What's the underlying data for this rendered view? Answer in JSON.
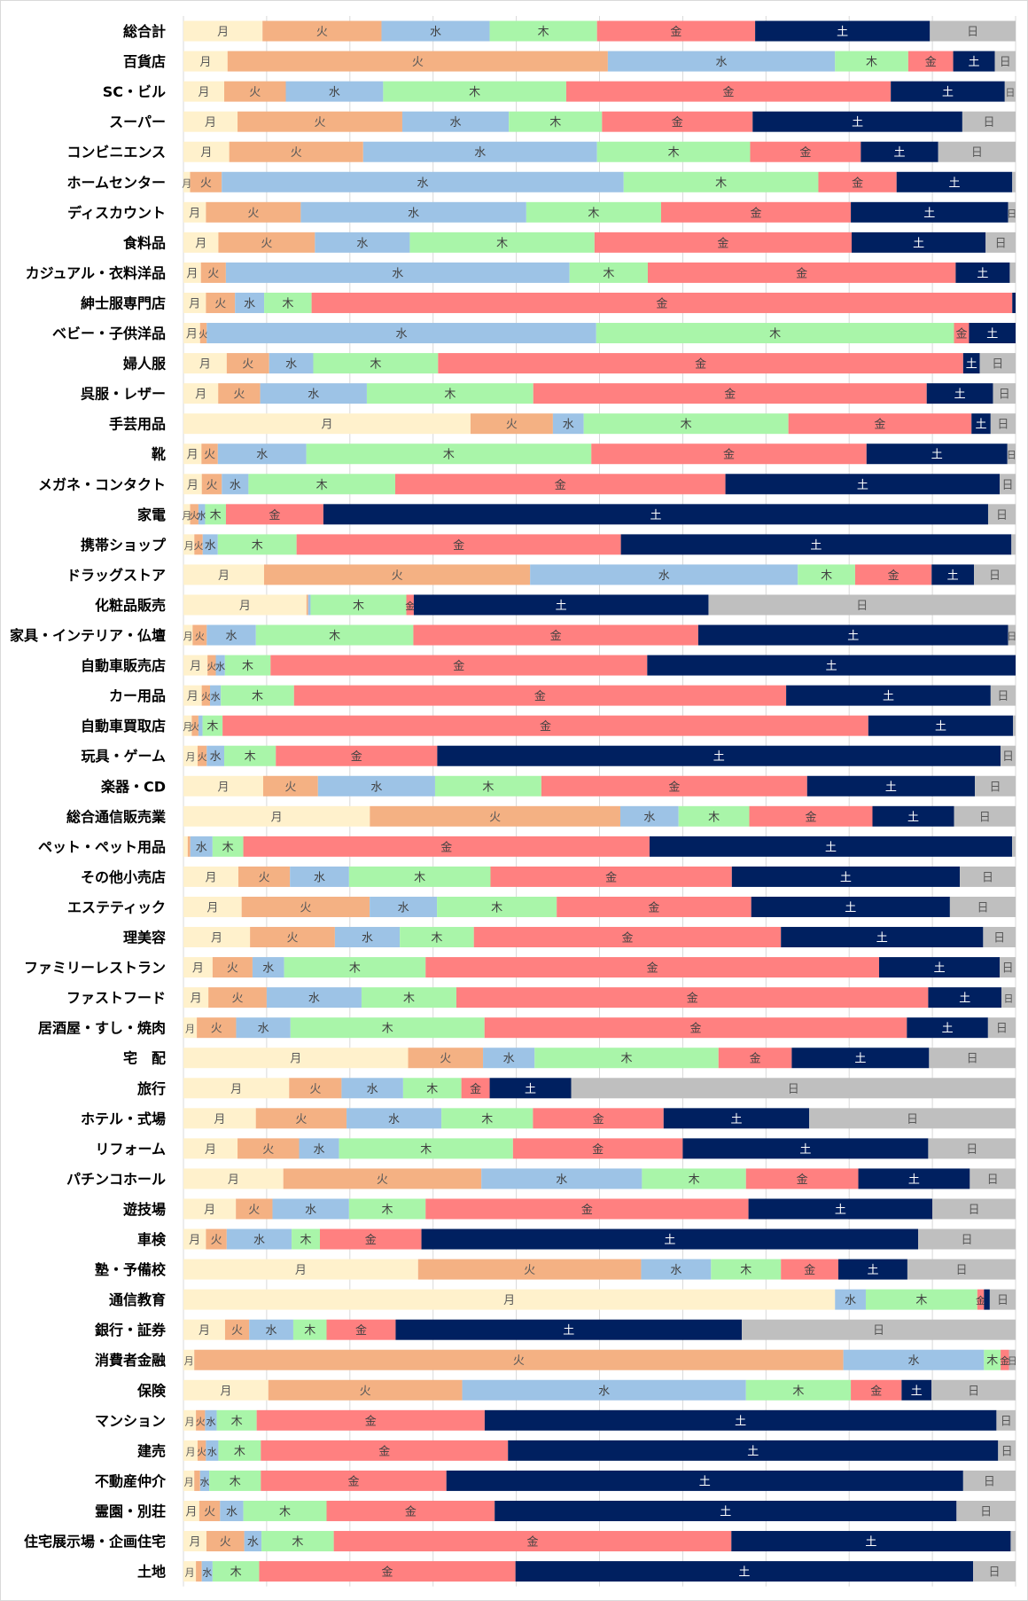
{
  "chart_data": {
    "type": "bar",
    "orientation": "horizontal",
    "stacked": true,
    "percent": true,
    "xlim": [
      0,
      100
    ],
    "grid": true,
    "series_names": [
      "月",
      "火",
      "水",
      "木",
      "金",
      "土",
      "日"
    ],
    "series_colors": [
      "#FFF1CC",
      "#F4B183",
      "#9DC3E6",
      "#A9F5A9",
      "#FF8080",
      "#002060",
      "#BFBFBF"
    ],
    "label_colors": [
      "#595959",
      "#595959",
      "#404040",
      "#404040",
      "#404040",
      "#FFFFFF",
      "#595959"
    ],
    "rows": [
      {
        "label": "総合計",
        "values": [
          9.5,
          14.3,
          13.0,
          12.9,
          19.0,
          21.0,
          10.3
        ]
      },
      {
        "label": "百貨店",
        "values": [
          5.3,
          45.7,
          27.3,
          8.8,
          5.4,
          5.0,
          2.5
        ]
      },
      {
        "label": "SC・ビル",
        "values": [
          4.9,
          7.4,
          11.7,
          22.0,
          39.0,
          13.7,
          1.3
        ]
      },
      {
        "label": "スーパー",
        "values": [
          6.5,
          19.8,
          12.8,
          11.2,
          18.1,
          25.2,
          6.4
        ]
      },
      {
        "label": "コンビニエンス",
        "values": [
          5.5,
          16.1,
          28.1,
          18.4,
          13.3,
          9.3,
          9.3
        ]
      },
      {
        "label": "ホームセンター",
        "values": [
          0.8,
          3.8,
          48.3,
          23.4,
          9.4,
          13.9,
          0.4
        ]
      },
      {
        "label": "ディスカウント",
        "values": [
          2.7,
          11.4,
          27.1,
          16.2,
          22.8,
          18.9,
          0.9
        ]
      },
      {
        "label": "食料品",
        "values": [
          4.2,
          11.6,
          11.4,
          22.2,
          30.9,
          16.1,
          3.6
        ]
      },
      {
        "label": "カジュアル・衣料洋品",
        "values": [
          2.1,
          3.0,
          41.3,
          9.4,
          37.0,
          6.5,
          0.7
        ]
      },
      {
        "label": "紳士服専門店",
        "values": [
          2.7,
          3.5,
          3.5,
          5.7,
          84.2,
          0.4,
          0
        ]
      },
      {
        "label": "ベビー・子供洋品",
        "values": [
          2.0,
          0.8,
          46.8,
          43.0,
          1.8,
          5.6,
          0
        ]
      },
      {
        "label": "婦人服",
        "values": [
          5.2,
          5.1,
          5.3,
          15.0,
          63.1,
          2.0,
          4.3
        ]
      },
      {
        "label": "呉服・レザー",
        "values": [
          4.3,
          5.2,
          13.2,
          20.6,
          48.7,
          8.2,
          2.8
        ]
      },
      {
        "label": "手芸用品",
        "values": [
          34.5,
          9.9,
          3.7,
          24.6,
          22.0,
          2.3,
          3.0
        ]
      },
      {
        "label": "靴",
        "values": [
          2.2,
          2.0,
          10.8,
          34.8,
          33.6,
          17.2,
          1.0
        ]
      },
      {
        "label": "メガネ・コンタクト",
        "values": [
          2.2,
          2.4,
          3.2,
          17.6,
          39.6,
          32.9,
          1.9
        ]
      },
      {
        "label": "家電",
        "values": [
          0.8,
          1.0,
          0.8,
          2.5,
          11.7,
          79.8,
          3.3
        ]
      },
      {
        "label": "携帯ショップ",
        "values": [
          1.3,
          1.0,
          1.8,
          9.4,
          38.7,
          46.6,
          0.5
        ]
      },
      {
        "label": "ドラッグストア",
        "values": [
          9.7,
          32.0,
          32.2,
          6.9,
          9.2,
          5.1,
          5.0
        ]
      },
      {
        "label": "化粧品販売",
        "values": [
          14.9,
          0.2,
          0.3,
          11.6,
          0.9,
          35.7,
          37.2
        ]
      },
      {
        "label": "家具・インテリア・仏壇",
        "values": [
          1.1,
          1.7,
          5.9,
          18.9,
          34.2,
          37.2,
          0.9
        ]
      },
      {
        "label": "自動車販売店",
        "values": [
          2.9,
          1.0,
          1.1,
          5.5,
          45.4,
          44.4,
          0
        ]
      },
      {
        "label": "カー用品",
        "values": [
          2.2,
          1.0,
          1.3,
          8.8,
          59.2,
          24.6,
          3.0
        ]
      },
      {
        "label": "自動車買取店",
        "values": [
          1.0,
          0.8,
          0.5,
          2.4,
          77.6,
          17.4,
          0.3
        ]
      },
      {
        "label": "玩具・ゲーム",
        "values": [
          1.7,
          1.1,
          2.1,
          6.2,
          19.4,
          67.7,
          1.8
        ]
      },
      {
        "label": "楽器・CD",
        "values": [
          9.6,
          6.6,
          14.1,
          12.8,
          32.0,
          20.2,
          4.9
        ]
      },
      {
        "label": "総合通信販売業",
        "values": [
          22.4,
          30.1,
          7.0,
          8.5,
          14.8,
          9.8,
          7.4
        ]
      },
      {
        "label": "ペット・ペット用品",
        "values": [
          0.5,
          0.3,
          2.6,
          3.6,
          47.5,
          42.4,
          0.4
        ]
      },
      {
        "label": "その他小売店",
        "values": [
          6.6,
          6.2,
          7.1,
          17.0,
          29.0,
          27.4,
          6.7
        ]
      },
      {
        "label": "エステティック",
        "values": [
          7.0,
          15.4,
          8.1,
          14.4,
          23.4,
          23.9,
          7.9
        ]
      },
      {
        "label": "理美容",
        "values": [
          8.0,
          10.2,
          7.8,
          8.9,
          36.9,
          24.3,
          3.9
        ]
      },
      {
        "label": "ファミリーレストラン",
        "values": [
          3.5,
          4.8,
          3.8,
          17.0,
          54.5,
          14.5,
          1.9
        ]
      },
      {
        "label": "ファストフード",
        "values": [
          3.0,
          7.0,
          11.4,
          11.4,
          56.7,
          8.8,
          1.7
        ]
      },
      {
        "label": "居酒屋・すし・焼肉",
        "values": [
          1.6,
          4.7,
          6.5,
          23.2,
          50.5,
          9.7,
          3.3
        ]
      },
      {
        "label": "宅　配",
        "values": [
          27.0,
          9.0,
          6.2,
          22.1,
          8.8,
          16.5,
          10.4
        ]
      },
      {
        "label": "旅行",
        "values": [
          12.7,
          6.3,
          7.4,
          7.0,
          3.4,
          9.8,
          53.4
        ]
      },
      {
        "label": "ホテル・式場",
        "values": [
          8.7,
          10.9,
          11.4,
          11.0,
          15.7,
          17.5,
          24.8
        ]
      },
      {
        "label": "リフォーム",
        "values": [
          6.5,
          7.4,
          4.8,
          20.9,
          20.4,
          29.5,
          10.5
        ]
      },
      {
        "label": "パチンコホール",
        "values": [
          12.0,
          23.8,
          19.3,
          12.5,
          13.5,
          13.4,
          5.5
        ]
      },
      {
        "label": "遊技場",
        "values": [
          6.3,
          4.4,
          9.2,
          9.2,
          38.8,
          22.1,
          10.0
        ]
      },
      {
        "label": "車検",
        "values": [
          2.7,
          2.5,
          7.8,
          3.4,
          12.2,
          59.7,
          11.7
        ]
      },
      {
        "label": "塾・予備校",
        "values": [
          28.2,
          26.8,
          8.4,
          8.4,
          6.9,
          8.3,
          13.0
        ]
      },
      {
        "label": "通信教育",
        "values": [
          78.3,
          0,
          3.7,
          13.4,
          0.8,
          0.7,
          3.1
        ]
      },
      {
        "label": "銀行・証券",
        "values": [
          5.0,
          2.9,
          5.3,
          4.0,
          8.3,
          41.6,
          32.9
        ]
      },
      {
        "label": "消費者金融",
        "values": [
          1.3,
          78.0,
          16.9,
          2.0,
          1.0,
          0,
          0.8
        ]
      },
      {
        "label": "保険",
        "values": [
          10.2,
          23.3,
          34.1,
          12.6,
          6.1,
          3.6,
          10.1
        ]
      },
      {
        "label": "マンション",
        "values": [
          1.5,
          1.1,
          1.4,
          4.8,
          27.4,
          61.5,
          2.3
        ]
      },
      {
        "label": "建売",
        "values": [
          1.7,
          1.0,
          1.5,
          5.1,
          29.7,
          58.9,
          2.1
        ]
      },
      {
        "label": "不動産仲介",
        "values": [
          1.3,
          0.7,
          1.1,
          6.2,
          22.3,
          62.1,
          6.3
        ]
      },
      {
        "label": "霊園・別荘",
        "values": [
          1.9,
          2.5,
          2.8,
          10.0,
          20.2,
          55.5,
          7.1
        ]
      },
      {
        "label": "住宅展示場・企画住宅",
        "values": [
          2.8,
          4.6,
          2.1,
          8.8,
          48.4,
          34.0,
          0.6
        ]
      },
      {
        "label": "土地",
        "values": [
          1.5,
          0.7,
          1.3,
          5.6,
          30.8,
          55.0,
          5.1
        ]
      }
    ]
  }
}
